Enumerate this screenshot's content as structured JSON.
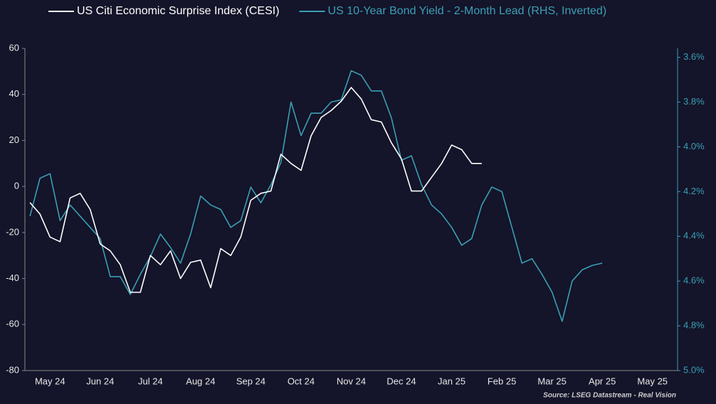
{
  "chart_data": {
    "type": "line",
    "source": "Source: LSEG Datastream - Real Vision",
    "legend": "top",
    "categories": [
      null,
      null,
      "May 24",
      null,
      null,
      null,
      null,
      "Jun 24",
      null,
      null,
      null,
      null,
      "Jul 24",
      null,
      null,
      null,
      null,
      "Aug 24",
      null,
      null,
      null,
      null,
      "Sep 24",
      null,
      null,
      null,
      null,
      "Oct 24",
      null,
      null,
      null,
      null,
      "Nov 24",
      null,
      null,
      null,
      null,
      "Dec 24",
      null,
      null,
      null,
      null,
      "Jan 25",
      null,
      null,
      null,
      null,
      "Feb 25",
      null,
      null,
      null,
      null,
      "Mar 25",
      null,
      null,
      null,
      null,
      "Apr 25",
      null,
      null,
      null,
      null,
      "May 25",
      null,
      null
    ],
    "ylim": [
      -80,
      60
    ],
    "yticks": [
      -80,
      -60,
      -40,
      -20,
      0,
      20,
      40,
      60
    ],
    "y2lim": [
      5.0,
      3.56
    ],
    "y2ticks": [
      {
        "value": 3.6,
        "label": "3.6%"
      },
      {
        "value": 3.8,
        "label": "3.8%"
      },
      {
        "value": 4.0,
        "label": "4.0%"
      },
      {
        "value": 4.2,
        "label": "4.2%"
      },
      {
        "value": 4.4,
        "label": "4.4%"
      },
      {
        "value": 4.6,
        "label": "4.6%"
      },
      {
        "value": 4.8,
        "label": "4.8%"
      },
      {
        "value": 5.0,
        "label": "5.0%"
      }
    ],
    "y2color": "#3a9fb3",
    "series": [
      {
        "name": "US Citi Economic Surprise Index (CESI)",
        "color": "#ffffff",
        "values": [
          -7,
          -12,
          -22,
          -24,
          -5,
          -3,
          -10,
          -25,
          -28,
          -34,
          -46,
          -46,
          -30,
          -34,
          -28,
          -40,
          -33,
          -32,
          -44,
          -27,
          -30,
          -22,
          -6,
          -3,
          -2,
          14,
          10,
          7,
          22,
          30,
          33,
          37,
          43,
          38,
          29,
          28,
          19,
          12,
          -2,
          -2,
          4,
          10,
          18,
          16,
          10,
          10,
          null,
          null,
          null,
          null,
          null,
          null,
          null,
          null,
          null,
          null,
          null,
          null,
          null,
          null,
          null,
          null,
          null,
          null,
          null
        ]
      },
      {
        "name": "US 10-Year Bond Yield - 2-Month Lead (RHS, Inverted)",
        "color": "#3a9fb3",
        "axis": "y2",
        "values": [
          4.31,
          4.14,
          4.12,
          4.33,
          4.26,
          4.31,
          4.36,
          4.41,
          4.58,
          4.58,
          4.66,
          4.57,
          4.49,
          4.39,
          4.45,
          4.52,
          4.39,
          4.22,
          4.26,
          4.28,
          4.36,
          4.33,
          4.18,
          4.25,
          4.17,
          4.07,
          3.8,
          3.95,
          3.85,
          3.85,
          3.8,
          3.79,
          3.66,
          3.68,
          3.75,
          3.75,
          3.87,
          4.06,
          4.04,
          4.17,
          4.26,
          4.3,
          4.36,
          4.44,
          4.41,
          4.26,
          4.18,
          4.2,
          4.36,
          4.52,
          4.5,
          4.57,
          4.65,
          4.78,
          4.6,
          4.55,
          4.53,
          4.52,
          null,
          null,
          null,
          null,
          null,
          null,
          null
        ]
      }
    ]
  }
}
